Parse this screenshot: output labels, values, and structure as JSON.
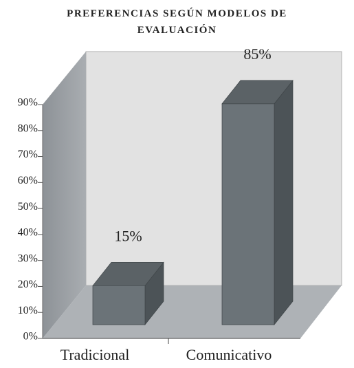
{
  "chart_data": {
    "type": "bar3d",
    "title": "PREFERENCIAS SEGÚN MODELOS DE EVALUACIÓN",
    "categories": [
      "Tradicional",
      "Comunicativo"
    ],
    "values": [
      15,
      85
    ],
    "value_labels": [
      "15%",
      "85%"
    ],
    "color": "#6b7378",
    "ylim": [
      0,
      90
    ],
    "yticks": [
      {
        "value": 0,
        "label": "0%"
      },
      {
        "value": 10,
        "label": "10%"
      },
      {
        "value": 20,
        "label": "20%"
      },
      {
        "value": 30,
        "label": "30%"
      },
      {
        "value": 40,
        "label": "40%"
      },
      {
        "value": 50,
        "label": "50%"
      },
      {
        "value": 60,
        "label": "60%"
      },
      {
        "value": 70,
        "label": "70%"
      },
      {
        "value": 80,
        "label": "80%"
      },
      {
        "value": 90,
        "label": "90%"
      }
    ],
    "grid": false
  }
}
